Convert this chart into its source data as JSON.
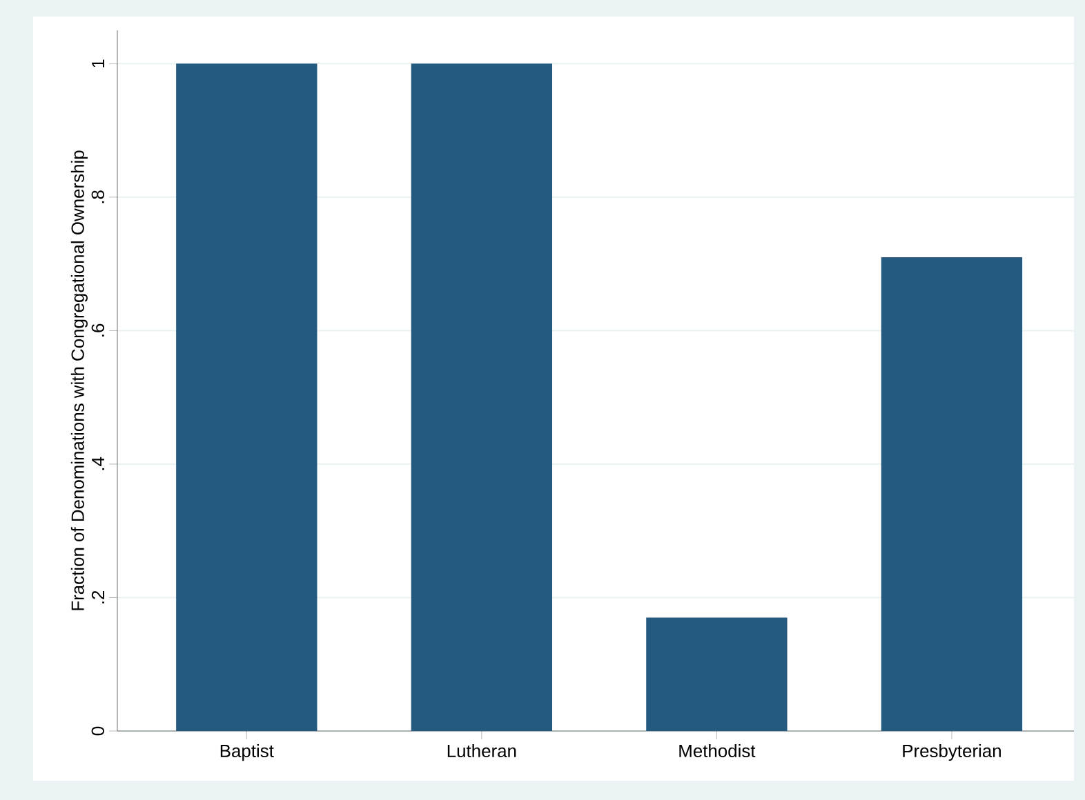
{
  "chart_data": {
    "type": "bar",
    "ylabel": "Fraction of Denominations with Congregational Ownership",
    "categories": [
      "Baptist",
      "Lutheran",
      "Methodist",
      "Presbyterian"
    ],
    "values": [
      1,
      1,
      0.17,
      0.71
    ],
    "color": "#245a80",
    "ylim": [
      0,
      1.05
    ],
    "yticks": [
      0,
      {
        "value": 0.2,
        "label": ".2"
      },
      {
        "value": 0.4,
        "label": ".4"
      },
      {
        "value": 0.6,
        "label": ".6"
      },
      {
        "value": 0.8,
        "label": ".8"
      },
      1
    ],
    "grid": "y"
  }
}
